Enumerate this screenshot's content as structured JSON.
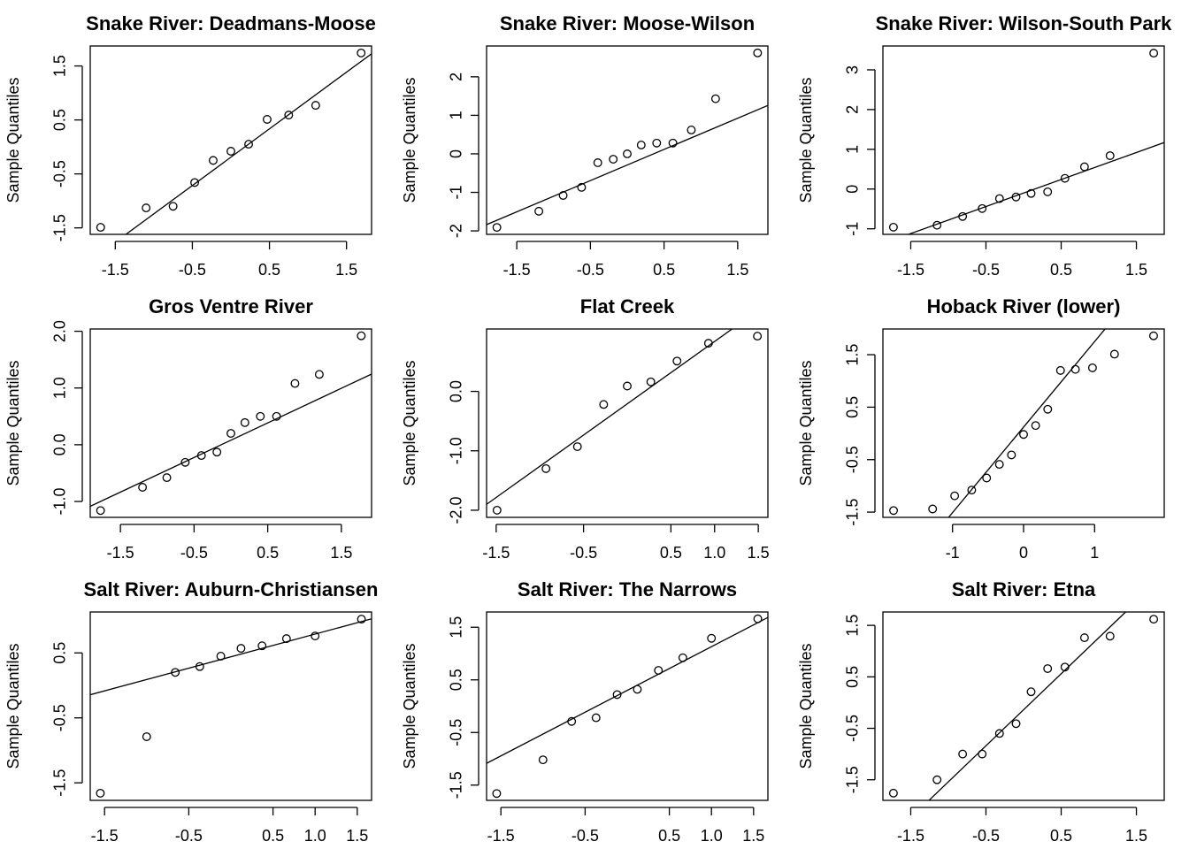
{
  "chart_data": [
    {
      "type": "scatter",
      "title": "Snake River: Deadmans-Moose",
      "ylabel": "Sample Quantiles",
      "x": [
        -1.69,
        -1.1,
        -0.75,
        -0.47,
        -0.23,
        0,
        0.23,
        0.47,
        0.75,
        1.1,
        1.69
      ],
      "values": [
        -1.49,
        -1.13,
        -1.1,
        -0.66,
        -0.25,
        -0.08,
        0.05,
        0.51,
        0.59,
        0.77,
        1.74
      ],
      "qq_line": {
        "intercept": -0.19,
        "slope": 1.05
      },
      "xlim": [
        -1.825,
        1.825
      ],
      "ylim": [
        -1.62,
        1.87
      ],
      "xticks": [
        -1.5,
        -0.5,
        0.5,
        1.5
      ],
      "yticks": [
        -1.5,
        -0.5,
        0.5,
        1.5
      ]
    },
    {
      "type": "scatter",
      "title": "Snake River: Moose-Wilson",
      "ylabel": "Sample Quantiles",
      "x": [
        -1.77,
        -1.2,
        -0.87,
        -0.62,
        -0.4,
        -0.19,
        0,
        0.19,
        0.4,
        0.62,
        0.87,
        1.2,
        1.77
      ],
      "values": [
        -1.91,
        -1.49,
        -1.08,
        -0.87,
        -0.23,
        -0.14,
        0,
        0.23,
        0.28,
        0.28,
        0.62,
        1.43,
        2.62
      ],
      "qq_line": {
        "intercept": -0.29,
        "slope": 0.81
      },
      "xlim": [
        -1.91,
        1.91
      ],
      "ylim": [
        -2.09,
        2.8
      ],
      "xticks": [
        -1.5,
        -0.5,
        0.5,
        1.5
      ],
      "yticks": [
        -2,
        -1,
        0,
        1,
        2
      ]
    },
    {
      "type": "scatter",
      "title": "Snake River: Wilson-South Park",
      "ylabel": "Sample Quantiles",
      "x": [
        -1.73,
        -1.15,
        -0.81,
        -0.55,
        -0.32,
        -0.1,
        0.1,
        0.32,
        0.55,
        0.81,
        1.15,
        1.73
      ],
      "values": [
        -0.96,
        -0.91,
        -0.69,
        -0.49,
        -0.24,
        -0.2,
        -0.11,
        -0.07,
        0.27,
        0.56,
        0.84,
        3.42
      ],
      "qq_line": {
        "intercept": -0.1,
        "slope": 0.68
      },
      "xlim": [
        -1.87,
        1.87
      ],
      "ylim": [
        -1.14,
        3.6
      ],
      "xticks": [
        -1.5,
        -0.5,
        0.5,
        1.5
      ],
      "yticks": [
        -1,
        0,
        1,
        2,
        3
      ]
    },
    {
      "type": "scatter",
      "title": "Gros Ventre River",
      "ylabel": "Sample Quantiles",
      "x": [
        -1.77,
        -1.2,
        -0.87,
        -0.62,
        -0.4,
        -0.19,
        0,
        0.19,
        0.4,
        0.62,
        0.87,
        1.2,
        1.77
      ],
      "values": [
        -1.16,
        -0.75,
        -0.58,
        -0.31,
        -0.19,
        -0.13,
        0.2,
        0.39,
        0.5,
        0.5,
        1.08,
        1.24,
        1.92
      ],
      "qq_line": {
        "intercept": 0.08,
        "slope": 0.61
      },
      "xlim": [
        -1.91,
        1.91
      ],
      "ylim": [
        -1.28,
        2.04
      ],
      "xticks": [
        -1.5,
        -0.5,
        0.5,
        1.5
      ],
      "yticks": [
        {
          "value": -1,
          "label": "-1.0"
        },
        {
          "value": 0,
          "label": "0.0"
        },
        {
          "value": 1,
          "label": "1.0"
        },
        {
          "value": 2,
          "label": "2.0"
        }
      ]
    },
    {
      "type": "scatter",
      "title": "Flat Creek",
      "ylabel": "Sample Quantiles",
      "x": [
        -1.49,
        -0.93,
        -0.57,
        -0.27,
        0,
        0.27,
        0.57,
        0.93,
        1.49
      ],
      "values": [
        -2.0,
        -1.3,
        -0.93,
        -0.22,
        0.09,
        0.16,
        0.51,
        0.81,
        0.93
      ],
      "qq_line": {
        "intercept": -0.21,
        "slope": 1.05
      },
      "xlim": [
        -1.61,
        1.61
      ],
      "ylim": [
        -2.12,
        1.05
      ],
      "xticks": [
        -1.5,
        -0.5,
        0.5,
        {
          "value": 1,
          "label": "1.0"
        },
        1.5
      ],
      "yticks": [
        {
          "value": -2,
          "label": "-2.0"
        },
        {
          "value": -1,
          "label": "-1.0"
        },
        {
          "value": 0,
          "label": "0.0"
        }
      ]
    },
    {
      "type": "scatter",
      "title": "Hoback River (lower)",
      "ylabel": "Sample Quantiles",
      "x": [
        -1.83,
        -1.28,
        -0.97,
        -0.73,
        -0.52,
        -0.34,
        -0.17,
        0,
        0.17,
        0.34,
        0.52,
        0.73,
        0.97,
        1.28,
        1.83
      ],
      "values": [
        -1.47,
        -1.44,
        -1.19,
        -1.08,
        -0.85,
        -0.59,
        -0.41,
        -0.02,
        0.15,
        0.46,
        1.2,
        1.22,
        1.25,
        1.51,
        1.86
      ],
      "qq_line": {
        "intercept": 0.12,
        "slope": 1.63
      },
      "xlim": [
        -1.98,
        1.98
      ],
      "ylim": [
        -1.6,
        1.99
      ],
      "xticks": [
        -1,
        0,
        1
      ],
      "yticks": [
        -1.5,
        -0.5,
        0.5,
        1.5
      ]
    },
    {
      "type": "scatter",
      "title": "Salt River: Auburn-Christiansen",
      "ylabel": "Sample Quantiles",
      "x": [
        -1.55,
        -1.0,
        -0.66,
        -0.37,
        -0.12,
        0.12,
        0.37,
        0.66,
        1.0,
        1.55
      ],
      "values": [
        -1.66,
        -0.79,
        0.2,
        0.29,
        0.45,
        0.57,
        0.61,
        0.72,
        0.76,
        1.02
      ],
      "qq_line": {
        "intercept": 0.44,
        "slope": 0.35
      },
      "xlim": [
        -1.67,
        1.67
      ],
      "ylim": [
        -1.77,
        1.13
      ],
      "xticks": [
        -1.5,
        -0.5,
        0.5,
        {
          "value": 1,
          "label": "1.0"
        },
        1.5
      ],
      "yticks": [
        -1.5,
        -0.5,
        0.5
      ]
    },
    {
      "type": "scatter",
      "title": "Salt River: The Narrows",
      "ylabel": "Sample Quantiles",
      "x": [
        -1.55,
        -1.0,
        -0.66,
        -0.37,
        -0.12,
        0.12,
        0.37,
        0.66,
        1.0,
        1.55
      ],
      "values": [
        -1.66,
        -1.02,
        -0.29,
        -0.22,
        0.22,
        0.32,
        0.68,
        0.92,
        1.29,
        1.66
      ],
      "qq_line": {
        "intercept": 0.3,
        "slope": 0.83
      },
      "xlim": [
        -1.67,
        1.67
      ],
      "ylim": [
        -1.79,
        1.79
      ],
      "xticks": [
        -1.5,
        -0.5,
        0.5,
        {
          "value": 1,
          "label": "1.0"
        },
        1.5
      ],
      "yticks": [
        -1.5,
        -0.5,
        0.5,
        1.5
      ]
    },
    {
      "type": "scatter",
      "title": "Salt River: Etna",
      "ylabel": "Sample Quantiles",
      "x": [
        -1.73,
        -1.15,
        -0.81,
        -0.55,
        -0.32,
        -0.1,
        0.1,
        0.32,
        0.55,
        0.81,
        1.15,
        1.73
      ],
      "values": [
        -1.76,
        -1.5,
        -1.0,
        -1.0,
        -0.6,
        -0.41,
        0.21,
        0.66,
        0.69,
        1.26,
        1.29,
        1.62
      ],
      "qq_line": {
        "intercept": -0.14,
        "slope": 1.4
      },
      "xlim": [
        -1.87,
        1.87
      ],
      "ylim": [
        -1.9,
        1.76
      ],
      "xticks": [
        -1.5,
        -0.5,
        0.5,
        1.5
      ],
      "yticks": [
        -1.5,
        -0.5,
        0.5,
        1.5
      ]
    }
  ]
}
